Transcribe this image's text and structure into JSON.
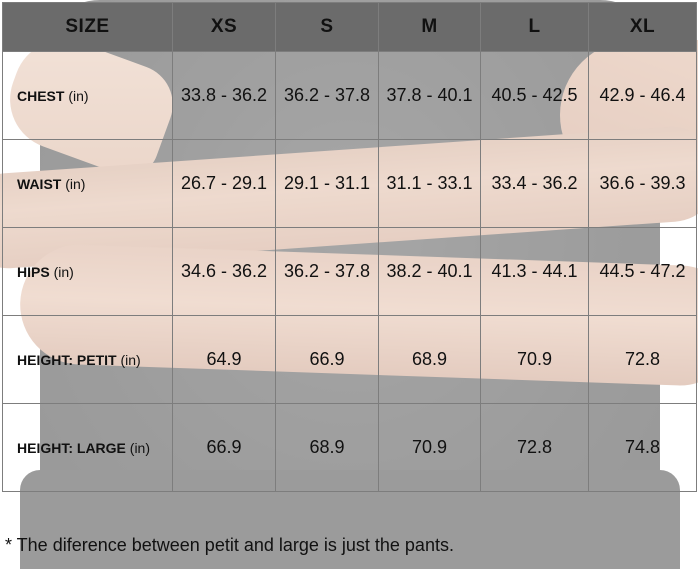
{
  "header": {
    "size_label": "SIZE",
    "sizes": [
      "XS",
      "S",
      "M",
      "L",
      "XL"
    ]
  },
  "rows": [
    {
      "label": "CHEST",
      "unit": "(in)",
      "values": [
        "33.8 - 36.2",
        "36.2 - 37.8",
        "37.8 - 40.1",
        "40.5 - 42.5",
        "42.9 - 46.4"
      ]
    },
    {
      "label": "WAIST",
      "unit": "(in)",
      "values": [
        "26.7 - 29.1",
        "29.1 - 31.1",
        "31.1 - 33.1",
        "33.4 - 36.2",
        "36.6 - 39.3"
      ]
    },
    {
      "label": "HIPS",
      "unit": "(in)",
      "values": [
        "34.6 - 36.2",
        "36.2 - 37.8",
        "38.2 - 40.1",
        "41.3 - 44.1",
        "44.5 - 47.2"
      ]
    },
    {
      "label": "HEIGHT: PETIT",
      "unit": "(in)",
      "values": [
        "64.9",
        "66.9",
        "68.9",
        "70.9",
        "72.8"
      ]
    },
    {
      "label": "HEIGHT: LARGE",
      "unit": "(in)",
      "values": [
        "66.9",
        "68.9",
        "70.9",
        "72.8",
        "74.8"
      ]
    }
  ],
  "footnote": "* The diference between petit and large is just the pants."
}
